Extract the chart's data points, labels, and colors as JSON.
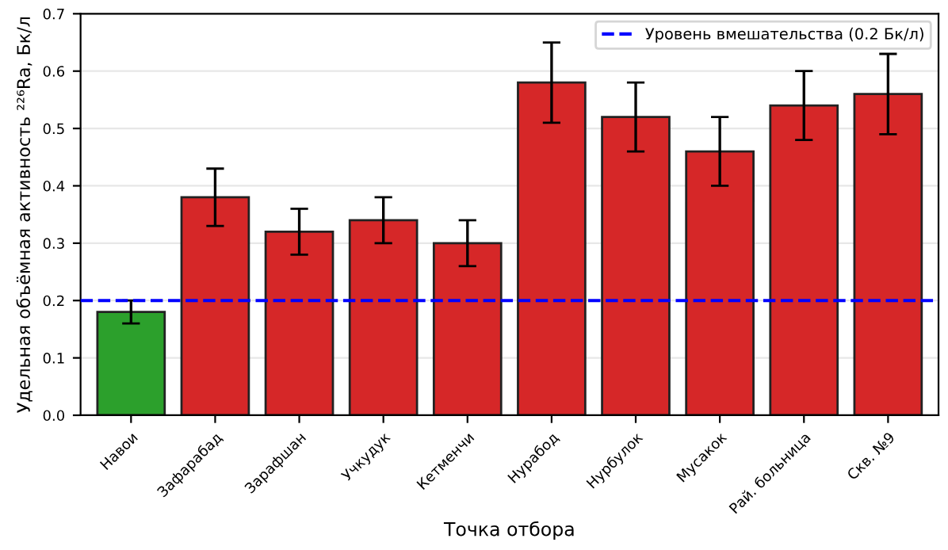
{
  "chart_data": {
    "type": "bar",
    "xlabel": "Точка отбора",
    "ylabel": "Удельная объёмная активность ²²⁶Ra, Бк/л",
    "categories": [
      "Навои",
      "Зафарабад",
      "Зарафшан",
      "Учкудук",
      "Кетменчи",
      "Нурабод",
      "Нурбулок",
      "Мусакок",
      "Рай. больница",
      "Скв. №9"
    ],
    "values": [
      0.18,
      0.38,
      0.32,
      0.34,
      0.3,
      0.58,
      0.52,
      0.46,
      0.54,
      0.56
    ],
    "errors": [
      0.02,
      0.05,
      0.04,
      0.04,
      0.04,
      0.07,
      0.06,
      0.06,
      0.06,
      0.07
    ],
    "colors": [
      "#2ca02c",
      "#d62728",
      "#d62728",
      "#d62728",
      "#d62728",
      "#d62728",
      "#d62728",
      "#d62728",
      "#d62728",
      "#d62728"
    ],
    "ylim": [
      0,
      0.7
    ],
    "yticks": [
      {
        "value": 0,
        "label": "0.0"
      },
      0.1,
      0.2,
      0.3,
      0.4,
      0.5,
      0.6,
      0.7
    ],
    "ref_lines": [
      {
        "axis": "y",
        "value": 0.2,
        "label": "Уровень вмешательства (0.2 Бк/л)",
        "color": "#0000ff",
        "line_style": "dashed"
      }
    ],
    "grid": "y",
    "legend": "top right"
  }
}
